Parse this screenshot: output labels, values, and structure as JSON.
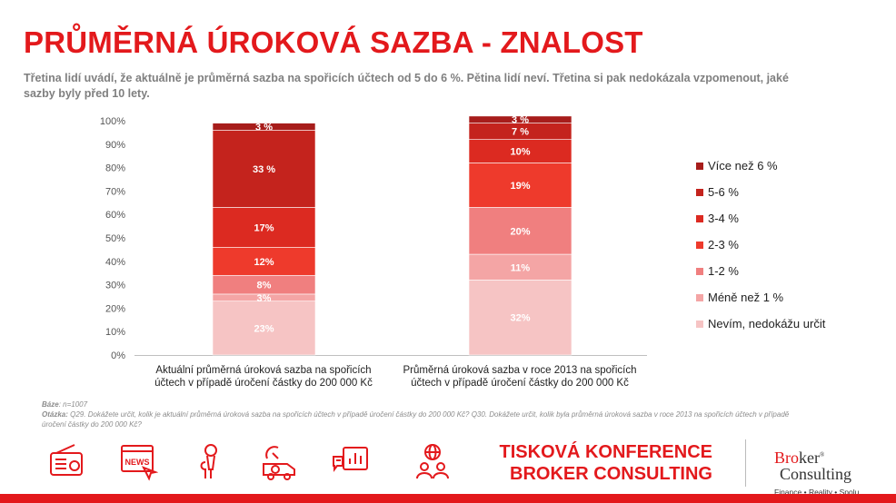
{
  "header": {
    "title": "PRŮMĚRNÁ ÚROKOVÁ SAZBA - ZNALOST",
    "subtitle": "Třetina lidí uvádí, že aktuálně je průměrná sazba na spořicích účtech od 5 do 6 %. Pětina lidí neví. Třetina si pak nedokázala vzpomenout, jaké sazby byly před 10 lety."
  },
  "chart_data": {
    "type": "bar",
    "stacked": true,
    "categories": [
      [
        "Aktuální průměrná úroková sazba na spořicích",
        "účtech v případě úročení částky do 200 000 Kč"
      ],
      [
        "Průměrná úroková sazba v roce 2013 na spořicích",
        "účtech v případě úročení částky do 200 000 Kč"
      ]
    ],
    "series": [
      {
        "name": "Nevím, nedokážu určit",
        "color": "#f6c4c4",
        "values": [
          23,
          32
        ],
        "labels": [
          "23%",
          "32%"
        ]
      },
      {
        "name": "Méně než 1 %",
        "color": "#f4a5a5",
        "values": [
          3,
          11
        ],
        "labels": [
          "3%",
          "11%"
        ]
      },
      {
        "name": "1-2 %",
        "color": "#f07f7f",
        "values": [
          8,
          20
        ],
        "labels": [
          "8%",
          "20%"
        ]
      },
      {
        "name": "2-3 %",
        "color": "#ee3a2c",
        "values": [
          12,
          19
        ],
        "labels": [
          "12%",
          "19%"
        ]
      },
      {
        "name": "3-4 %",
        "color": "#dc2a21",
        "values": [
          17,
          10
        ],
        "labels": [
          "17%",
          "10%"
        ]
      },
      {
        "name": "5-6 %",
        "color": "#c4231d",
        "values": [
          33,
          7
        ],
        "labels": [
          "33 %",
          "7 %"
        ]
      },
      {
        "name": "Více než 6 %",
        "color": "#a71d1b",
        "values": [
          3,
          3
        ],
        "labels": [
          "3 %",
          "3 %"
        ]
      }
    ],
    "y_ticks": [
      "0%",
      "10%",
      "20%",
      "30%",
      "40%",
      "50%",
      "60%",
      "70%",
      "80%",
      "90%",
      "100%"
    ],
    "ylim": [
      0,
      100
    ],
    "legend_position": "right",
    "grid": false
  },
  "legend": [
    {
      "label": "Více než 6 %",
      "color": "#a71d1b"
    },
    {
      "label": "5-6 %",
      "color": "#c4231d"
    },
    {
      "label": "3-4 %",
      "color": "#dc2a21"
    },
    {
      "label": "2-3 %",
      "color": "#ee3a2c"
    },
    {
      "label": "1-2 %",
      "color": "#f07f7f"
    },
    {
      "label": "Méně než 1 %",
      "color": "#f4a5a5"
    },
    {
      "label": "Nevím, nedokážu určit",
      "color": "#f6c4c4"
    }
  ],
  "footnote": {
    "base_label": "Báze",
    "base_value": ": n=1007",
    "question_label": "Otázka:",
    "question_text": " Q29. Dokážete určit, kolik je aktuální průměrná úroková sazba na spořicích účtech v případě úročení částky do 200 000 Kč? Q30. Dokážete určit, kolik byla průměrná úroková sazba v roce 2013 na spořicích účtech v případě úročení částky do 200 000 Kč?"
  },
  "footer": {
    "icons": [
      "radio-icon",
      "news-icon",
      "microphone-icon",
      "satellite-van-icon",
      "presentation-chart-icon",
      "globe-people-icon"
    ],
    "icon_news_text": "NEWS",
    "conference_line1": "TISKOVÁ KONFERENCE",
    "conference_line2": "BROKER CONSULTING",
    "logo_line1_red": "Bro",
    "logo_line1_rest": "ker",
    "logo_reg": "®",
    "logo_line2": "Consulting",
    "logo_tagline": "Finance • Reality • Spolu",
    "brand_color": "#e3191c"
  }
}
